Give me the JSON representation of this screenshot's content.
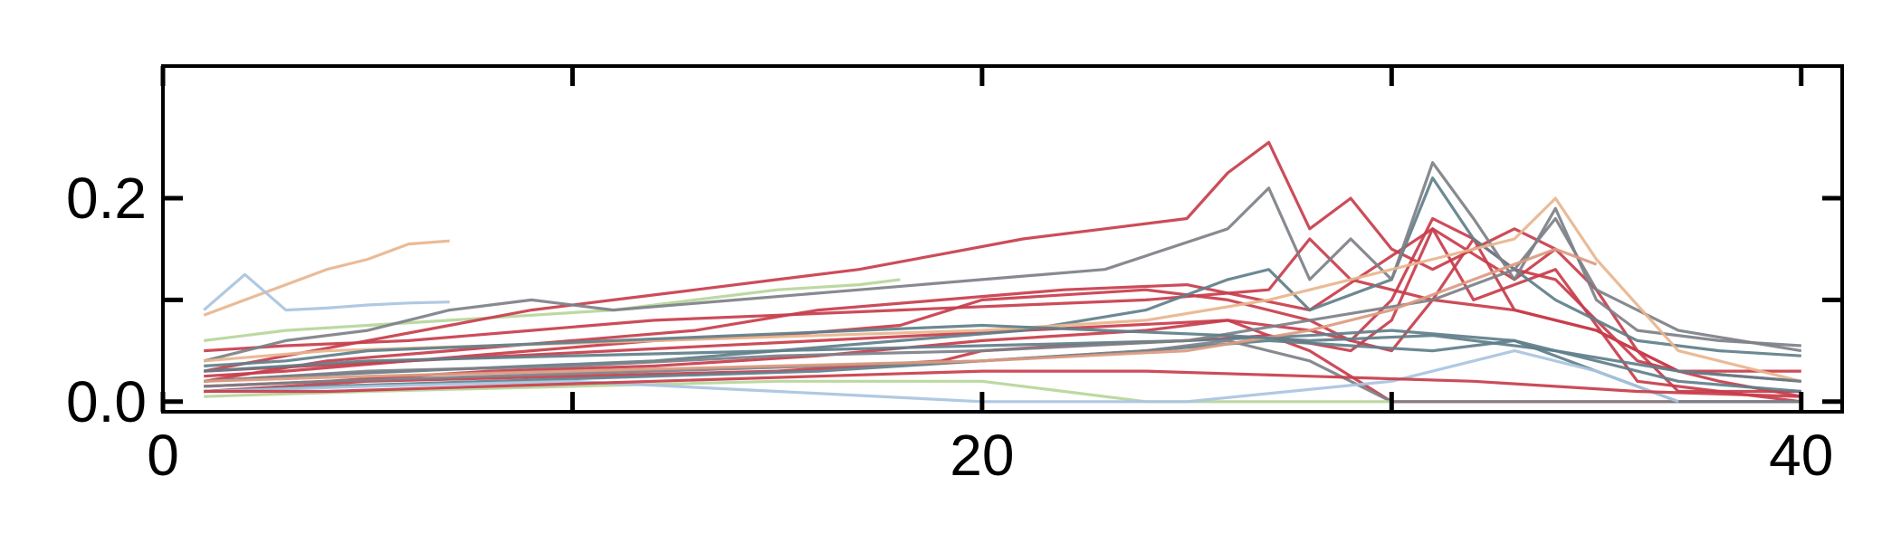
{
  "chart_data": {
    "type": "line",
    "title": "",
    "xlabel": "",
    "ylabel": "",
    "xlim": [
      0,
      41
    ],
    "ylim": [
      -0.01,
      0.33
    ],
    "xticks": [
      0,
      10,
      20,
      30,
      40
    ],
    "xtick_labels": [
      "0",
      "",
      "20",
      "",
      "40"
    ],
    "yticks": [
      0.0,
      0.1,
      0.2
    ],
    "ytick_labels": [
      "0.0",
      "",
      "0.2"
    ],
    "grid": false,
    "legend": "none",
    "palette": [
      "#c83d4b",
      "#5f7f8a",
      "#7d8087",
      "#e8b58e",
      "#dc9a80",
      "#b6d69a",
      "#a9c4e0"
    ],
    "series": [
      {
        "color": "#e8b58e",
        "x": [
          1,
          2,
          3,
          4,
          5,
          6,
          7
        ],
        "y": [
          0.085,
          0.1,
          0.115,
          0.13,
          0.14,
          0.155,
          0.158
        ]
      },
      {
        "color": "#a9c4e0",
        "x": [
          1,
          2,
          3,
          4,
          5,
          6,
          7
        ],
        "y": [
          0.09,
          0.125,
          0.09,
          0.092,
          0.095,
          0.097,
          0.098
        ]
      },
      {
        "color": "#b6d69a",
        "x": [
          1,
          3,
          5,
          7,
          9,
          11,
          13,
          15,
          17,
          18
        ],
        "y": [
          0.06,
          0.07,
          0.075,
          0.08,
          0.085,
          0.09,
          0.1,
          0.11,
          0.115,
          0.12
        ]
      },
      {
        "color": "#c83d4b",
        "x": [
          1,
          3,
          5,
          7,
          9,
          11,
          13,
          15,
          17,
          19,
          21,
          23,
          25,
          26,
          27,
          28,
          29,
          30,
          31,
          32,
          33,
          34
        ],
        "y": [
          0.03,
          0.045,
          0.06,
          0.075,
          0.09,
          0.1,
          0.11,
          0.12,
          0.13,
          0.145,
          0.16,
          0.17,
          0.18,
          0.225,
          0.255,
          0.17,
          0.2,
          0.15,
          0.13,
          0.15,
          0.17,
          0.15
        ]
      },
      {
        "color": "#c83d4b",
        "x": [
          1,
          4,
          7,
          10,
          13,
          16,
          19,
          22,
          25,
          28,
          31,
          33,
          34,
          35,
          36,
          37,
          40
        ],
        "y": [
          0.02,
          0.04,
          0.05,
          0.06,
          0.07,
          0.09,
          0.1,
          0.11,
          0.115,
          0.09,
          0.17,
          0.12,
          0.15,
          0.11,
          0.05,
          0.01,
          0.01
        ]
      },
      {
        "color": "#c83d4b",
        "x": [
          1,
          3,
          6,
          9,
          12,
          15,
          18,
          20,
          22,
          24,
          26,
          28,
          29,
          30,
          31,
          32,
          33,
          34,
          36,
          38,
          40
        ],
        "y": [
          0.025,
          0.03,
          0.04,
          0.05,
          0.06,
          0.065,
          0.075,
          0.1,
          0.105,
          0.11,
          0.1,
          0.08,
          0.06,
          0.1,
          0.18,
          0.16,
          0.13,
          0.12,
          0.04,
          0.02,
          0.005
        ]
      },
      {
        "color": "#c83d4b",
        "x": [
          1,
          4,
          8,
          12,
          16,
          20,
          24,
          26,
          28,
          30,
          31,
          32,
          33,
          35,
          37,
          40
        ],
        "y": [
          0.015,
          0.02,
          0.03,
          0.035,
          0.045,
          0.06,
          0.07,
          0.08,
          0.07,
          0.05,
          0.1,
          0.16,
          0.09,
          0.07,
          0.03,
          0.02
        ]
      },
      {
        "color": "#c83d4b",
        "x": [
          1,
          5,
          10,
          15,
          19,
          20,
          22,
          25,
          27,
          29,
          30,
          31,
          32,
          34,
          36,
          38,
          40
        ],
        "y": [
          0.01,
          0.02,
          0.025,
          0.03,
          0.04,
          0.05,
          0.055,
          0.06,
          0.065,
          0.05,
          0.08,
          0.17,
          0.1,
          0.13,
          0.02,
          0.01,
          0.0
        ]
      },
      {
        "color": "#c83d4b",
        "x": [
          1,
          6,
          11,
          16,
          21,
          26,
          28,
          30,
          32,
          34,
          36,
          40
        ],
        "y": [
          0.03,
          0.04,
          0.05,
          0.06,
          0.07,
          0.08,
          0.05,
          0.0,
          0.0,
          0.0,
          0.0,
          0.0
        ]
      },
      {
        "color": "#c83d4b",
        "x": [
          1,
          3,
          6,
          9,
          12,
          15,
          18,
          21,
          24,
          27,
          28,
          29,
          31,
          33,
          35,
          37,
          40
        ],
        "y": [
          0.05,
          0.055,
          0.06,
          0.07,
          0.08,
          0.085,
          0.09,
          0.095,
          0.1,
          0.11,
          0.16,
          0.12,
          0.1,
          0.09,
          0.07,
          0.03,
          0.03
        ]
      },
      {
        "color": "#5f7f8a",
        "x": [
          1,
          3,
          6,
          9,
          12,
          15,
          18,
          21,
          24,
          26,
          27,
          28,
          30,
          31,
          32,
          34,
          36,
          38,
          40
        ],
        "y": [
          0.02,
          0.025,
          0.03,
          0.035,
          0.04,
          0.05,
          0.06,
          0.07,
          0.09,
          0.12,
          0.13,
          0.09,
          0.12,
          0.22,
          0.16,
          0.1,
          0.06,
          0.05,
          0.045
        ]
      },
      {
        "color": "#5f7f8a",
        "x": [
          1,
          4,
          8,
          12,
          16,
          20,
          24,
          27,
          29,
          31,
          33,
          35,
          37,
          40
        ],
        "y": [
          0.01,
          0.015,
          0.02,
          0.025,
          0.03,
          0.04,
          0.05,
          0.06,
          0.055,
          0.05,
          0.06,
          0.04,
          0.02,
          0.01
        ]
      },
      {
        "color": "#5f7f8a",
        "x": [
          1,
          5,
          10,
          15,
          20,
          25,
          28,
          30,
          33,
          35,
          37,
          40
        ],
        "y": [
          0.03,
          0.04,
          0.045,
          0.05,
          0.055,
          0.06,
          0.065,
          0.07,
          0.06,
          0.03,
          0.0,
          0.0
        ]
      },
      {
        "color": "#7d8087",
        "x": [
          1,
          3,
          5,
          7,
          9,
          11,
          14,
          17,
          20,
          23,
          26,
          27,
          28,
          29,
          30,
          31,
          32,
          33,
          34,
          35,
          36,
          38,
          40
        ],
        "y": [
          0.04,
          0.06,
          0.07,
          0.09,
          0.1,
          0.09,
          0.1,
          0.11,
          0.12,
          0.13,
          0.17,
          0.21,
          0.12,
          0.16,
          0.12,
          0.235,
          0.18,
          0.12,
          0.19,
          0.1,
          0.07,
          0.06,
          0.055
        ]
      },
      {
        "color": "#7d8087",
        "x": [
          1,
          4,
          8,
          12,
          16,
          20,
          24,
          26,
          28,
          30,
          32,
          34,
          36,
          38,
          40
        ],
        "y": [
          0.015,
          0.02,
          0.025,
          0.03,
          0.035,
          0.04,
          0.05,
          0.06,
          0.04,
          0.0,
          0.0,
          0.0,
          0.0,
          0.0,
          0.0
        ]
      },
      {
        "color": "#7d8087",
        "x": [
          1,
          5,
          10,
          15,
          20,
          25,
          28,
          31,
          33,
          34,
          35,
          37,
          40
        ],
        "y": [
          0.02,
          0.03,
          0.035,
          0.045,
          0.05,
          0.06,
          0.08,
          0.1,
          0.13,
          0.18,
          0.11,
          0.07,
          0.05
        ]
      },
      {
        "color": "#e8b58e",
        "x": [
          1,
          4,
          8,
          12,
          16,
          20,
          24,
          27,
          29,
          31,
          33,
          34,
          35,
          37,
          40
        ],
        "y": [
          0.04,
          0.05,
          0.055,
          0.06,
          0.065,
          0.07,
          0.08,
          0.1,
          0.12,
          0.14,
          0.16,
          0.2,
          0.14,
          0.05,
          0.02
        ]
      },
      {
        "color": "#dc9a80",
        "x": [
          1,
          5,
          10,
          15,
          20,
          25,
          28,
          30,
          32,
          34,
          35
        ],
        "y": [
          0.02,
          0.025,
          0.03,
          0.035,
          0.04,
          0.05,
          0.07,
          0.09,
          0.12,
          0.15,
          0.135
        ]
      },
      {
        "color": "#b6d69a",
        "x": [
          1,
          5,
          10,
          15,
          20,
          22,
          24,
          26,
          28,
          30
        ],
        "y": [
          0.005,
          0.01,
          0.015,
          0.02,
          0.02,
          0.01,
          0.0,
          0.0,
          0.0,
          0.0
        ]
      },
      {
        "color": "#a9c4e0",
        "x": [
          1,
          5,
          10,
          15,
          20,
          25,
          30,
          33,
          35,
          37
        ],
        "y": [
          0.01,
          0.015,
          0.02,
          0.01,
          0.0,
          0.0,
          0.02,
          0.05,
          0.03,
          0.0
        ]
      },
      {
        "color": "#5f7f8a",
        "x": [
          1,
          3,
          5,
          8,
          11,
          14,
          17,
          20,
          23,
          26,
          28,
          31,
          34,
          37,
          40
        ],
        "y": [
          0.035,
          0.04,
          0.05,
          0.055,
          0.06,
          0.065,
          0.07,
          0.075,
          0.07,
          0.065,
          0.06,
          0.065,
          0.05,
          0.03,
          0.02
        ]
      },
      {
        "color": "#c83d4b",
        "x": [
          1,
          4,
          8,
          12,
          16,
          20,
          24,
          28,
          32,
          36,
          40
        ],
        "y": [
          0.01,
          0.01,
          0.015,
          0.02,
          0.025,
          0.03,
          0.03,
          0.025,
          0.02,
          0.01,
          0.005
        ]
      }
    ]
  }
}
